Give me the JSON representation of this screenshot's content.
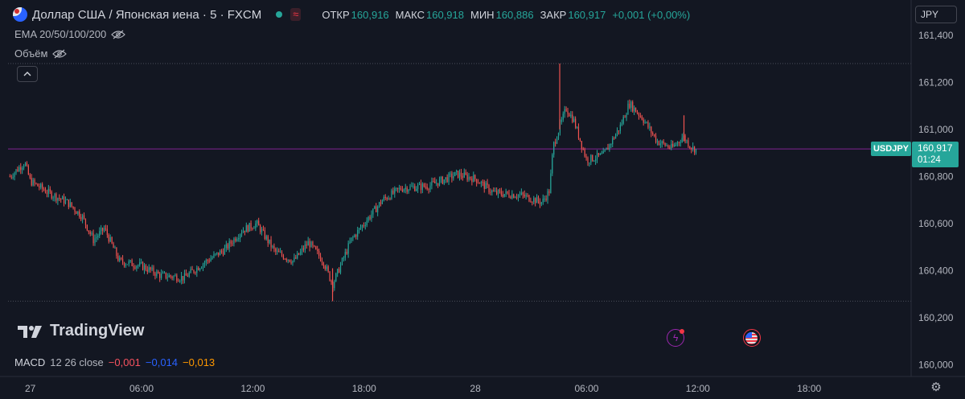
{
  "header": {
    "symbol": "Доллар США / Японская иена · 5 · FXCM",
    "ohlc": [
      {
        "label": "ОТКР",
        "value": "160,916"
      },
      {
        "label": "МАКС",
        "value": "160,918"
      },
      {
        "label": "МИН",
        "value": "160,886"
      },
      {
        "label": "ЗАКР",
        "value": "160,917"
      }
    ],
    "change": "+0,001 (+0,00%)",
    "wave_icon": "≈"
  },
  "indicators": {
    "ema": "EMA 20/50/100/200",
    "volume": "Объём"
  },
  "currency": "JPY",
  "price_tag": {
    "symbol": "USDJPY",
    "price": "160,917",
    "timer": "01:24"
  },
  "watermark": "TradingView",
  "macd": {
    "name": "MACD",
    "params": "12 26 close",
    "v1": "−0,001",
    "v2": "−0,014",
    "v3": "−0,013"
  },
  "colors": {
    "background": "#131722",
    "up": "#26a69a",
    "down": "#ef5350",
    "price_line": "#9c27b0",
    "grid_dotted": "#4a4e5a"
  },
  "chart_data": {
    "type": "candlestick",
    "y_ticks": [
      "161,400",
      "161,200",
      "161,000",
      "160,800",
      "160,600",
      "160,400",
      "160,200",
      "160,000"
    ],
    "y_tick_values": [
      161.4,
      161.2,
      161.0,
      160.8,
      160.6,
      160.4,
      160.2,
      160.0
    ],
    "ylim": [
      159.95,
      161.55
    ],
    "x_ticks": [
      "27",
      "06:00",
      "12:00",
      "18:00",
      "28",
      "06:00",
      "12:00",
      "18:00"
    ],
    "x_tick_positions_hours": [
      0,
      6,
      12,
      18,
      24,
      30,
      36,
      42
    ],
    "xlim_hours": [
      -1.2,
      47.5
    ],
    "candle_interval_minutes": 5,
    "last_price": 160.917,
    "session_high": 161.28,
    "session_low": 160.27,
    "close_path": [
      {
        "h": -1.1,
        "p": 160.8
      },
      {
        "h": -0.3,
        "p": 160.86
      },
      {
        "h": 0.0,
        "p": 160.78
      },
      {
        "h": 1.0,
        "p": 160.73
      },
      {
        "h": 2.0,
        "p": 160.69
      },
      {
        "h": 2.8,
        "p": 160.63
      },
      {
        "h": 3.4,
        "p": 160.53
      },
      {
        "h": 4.0,
        "p": 160.58
      },
      {
        "h": 4.8,
        "p": 160.44
      },
      {
        "h": 6.0,
        "p": 160.42
      },
      {
        "h": 7.0,
        "p": 160.38
      },
      {
        "h": 8.3,
        "p": 160.37
      },
      {
        "h": 9.3,
        "p": 160.43
      },
      {
        "h": 10.5,
        "p": 160.49
      },
      {
        "h": 11.4,
        "p": 160.57
      },
      {
        "h": 12.2,
        "p": 160.6
      },
      {
        "h": 13.2,
        "p": 160.48
      },
      {
        "h": 14.2,
        "p": 160.44
      },
      {
        "h": 15.0,
        "p": 160.52
      },
      {
        "h": 15.8,
        "p": 160.44
      },
      {
        "h": 16.3,
        "p": 160.34
      },
      {
        "h": 17.3,
        "p": 160.53
      },
      {
        "h": 18.2,
        "p": 160.62
      },
      {
        "h": 19.0,
        "p": 160.7
      },
      {
        "h": 20.0,
        "p": 160.75
      },
      {
        "h": 21.5,
        "p": 160.76
      },
      {
        "h": 23.0,
        "p": 160.81
      },
      {
        "h": 24.0,
        "p": 160.79
      },
      {
        "h": 25.0,
        "p": 160.73
      },
      {
        "h": 26.5,
        "p": 160.72
      },
      {
        "h": 27.6,
        "p": 160.69
      },
      {
        "h": 28.0,
        "p": 160.74
      },
      {
        "h": 28.2,
        "p": 160.93
      },
      {
        "h": 28.9,
        "p": 161.09
      },
      {
        "h": 29.3,
        "p": 161.04
      },
      {
        "h": 30.0,
        "p": 160.87
      },
      {
        "h": 30.9,
        "p": 160.89
      },
      {
        "h": 31.8,
        "p": 161.01
      },
      {
        "h": 32.3,
        "p": 161.11
      },
      {
        "h": 33.0,
        "p": 161.05
      },
      {
        "h": 33.8,
        "p": 160.95
      },
      {
        "h": 34.6,
        "p": 160.92
      },
      {
        "h": 35.2,
        "p": 160.97
      },
      {
        "h": 35.7,
        "p": 160.92
      },
      {
        "h": 35.9,
        "p": 160.917
      }
    ],
    "spike_wicks": [
      {
        "h": 28.55,
        "high": 161.28,
        "low": 161.0
      },
      {
        "h": 35.25,
        "high": 161.06,
        "low": 160.95
      },
      {
        "h": 16.3,
        "high": 160.41,
        "low": 160.27
      }
    ],
    "horizontal_levels": [
      161.28,
      160.27
    ],
    "events": [
      {
        "name": "lightning-event",
        "h": 34.8
      },
      {
        "name": "us-economic-event",
        "h": 38.9
      }
    ]
  }
}
